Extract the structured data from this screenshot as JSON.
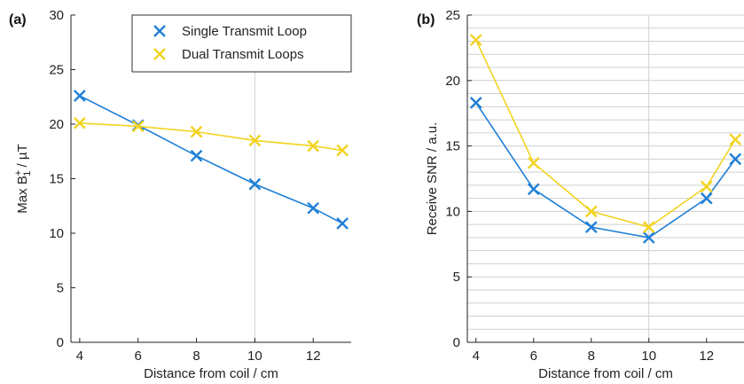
{
  "chart_data": [
    {
      "panel_label": "(a)",
      "type": "line",
      "xlabel": "Distance from coil / cm",
      "ylabel": {
        "base": "Max B",
        "sup": "+",
        "sub": "1",
        "unit": " / µT"
      },
      "xlim": [
        3.7,
        13.3
      ],
      "ylim": [
        0,
        30
      ],
      "xticks": [
        4,
        6,
        8,
        10,
        12
      ],
      "yticks": [
        0,
        5,
        10,
        15,
        20,
        25,
        30
      ],
      "grid": "major-at-x10-only",
      "legend_position": "top-right",
      "series": [
        {
          "name": "Single Transmit Loop",
          "color": "#1f7fd6",
          "x": [
            4,
            6,
            8,
            10,
            12,
            13
          ],
          "y": [
            22.6,
            19.9,
            17.1,
            14.5,
            12.3,
            10.9
          ]
        },
        {
          "name": "Dual Transmit Loops",
          "color": "#f2d31f",
          "x": [
            4,
            6,
            8,
            10,
            12,
            13
          ],
          "y": [
            20.1,
            19.8,
            19.3,
            18.5,
            18.0,
            17.6
          ]
        }
      ]
    },
    {
      "panel_label": "(b)",
      "type": "line",
      "xlabel": "Distance from coil / cm",
      "ylabel": "Receive SNR / a.u.",
      "xlim": [
        3.7,
        13.3
      ],
      "ylim": [
        0,
        25
      ],
      "xticks": [
        4,
        6,
        8,
        10,
        12
      ],
      "yticks": [
        0,
        5,
        10,
        15,
        20,
        25
      ],
      "grid": "minor-y-every-1-plus-x10",
      "series": [
        {
          "name": "Single Transmit Loop",
          "color": "#1f7fd6",
          "x": [
            4,
            6,
            8,
            10,
            12,
            13
          ],
          "y": [
            18.3,
            11.7,
            8.8,
            8.0,
            11.0,
            14.0
          ]
        },
        {
          "name": "Dual Transmit Loops",
          "color": "#f2d31f",
          "x": [
            4,
            6,
            8,
            10,
            12,
            13
          ],
          "y": [
            23.1,
            13.7,
            10.0,
            8.8,
            11.9,
            15.5
          ]
        }
      ]
    }
  ]
}
